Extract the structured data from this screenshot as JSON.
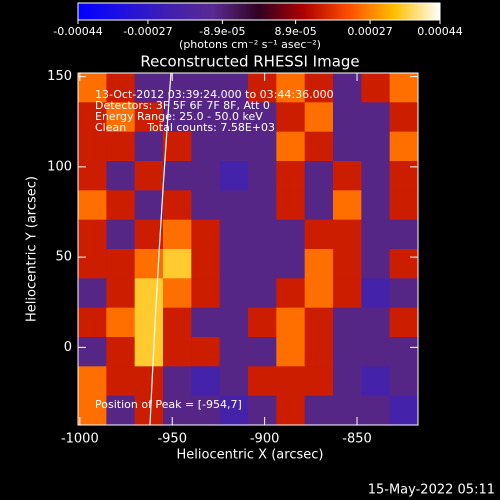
{
  "chart_data": {
    "type": "heatmap",
    "title": "Reconstructed RHESSI Image",
    "xlabel": "Heliocentric X (arcsec)",
    "ylabel": "Heliocentric Y (arcsec)",
    "xlim": [
      -1001,
      -817
    ],
    "xticks": [
      -1000,
      -950,
      -900,
      -850
    ],
    "ylim": [
      -43,
      152
    ],
    "yticks": [
      0,
      50,
      100,
      150
    ],
    "z": [
      [
        0.00025,
        0.00015,
        -0.0001,
        -0.0001,
        -0.0001,
        -0.0001,
        0.00015,
        0.00025,
        0.00015,
        -0.0001,
        0.00015,
        0.00025
      ],
      [
        0.00015,
        0.00025,
        0.00015,
        -0.0001,
        -0.0001,
        -0.0001,
        -0.0001,
        0.00015,
        0.00025,
        -0.0001,
        -0.0001,
        0.00015
      ],
      [
        0.00015,
        0.00015,
        -0.0001,
        0.00015,
        -0.0001,
        -0.0001,
        -0.0001,
        0.00025,
        0.00015,
        -0.0001,
        -0.0001,
        0.00025
      ],
      [
        0.00015,
        -0.0001,
        0.00015,
        -0.0001,
        -0.0001,
        -0.0002,
        -0.0001,
        0.00015,
        -0.0001,
        0.00015,
        -0.0001,
        0.00015
      ],
      [
        0.00025,
        0.00015,
        -0.0001,
        0.00015,
        -0.0001,
        -0.0001,
        -0.0001,
        0.00015,
        -0.0001,
        0.00025,
        -0.0001,
        0.00015
      ],
      [
        0.00015,
        -0.0001,
        0.00015,
        0.00025,
        0.00015,
        -0.0001,
        -0.0001,
        -0.0001,
        0.00015,
        0.00015,
        -0.0001,
        -0.0001
      ],
      [
        0.00015,
        0.00015,
        0.00025,
        0.00035,
        0.00015,
        -0.0001,
        -0.0001,
        -0.0001,
        0.00025,
        0.00015,
        -0.0001,
        0.00015
      ],
      [
        -0.0001,
        0.00015,
        0.00035,
        0.00025,
        0.00015,
        -0.0001,
        -0.0001,
        0.00015,
        0.00025,
        0.00015,
        -0.0002,
        -0.0001
      ],
      [
        0.00015,
        0.00025,
        0.00035,
        0.00015,
        -0.0001,
        -0.0001,
        0.00015,
        0.00025,
        0.00015,
        -0.0001,
        -0.0001,
        0.00015
      ],
      [
        -0.0001,
        0.00015,
        0.00035,
        0.00015,
        0.00015,
        -0.0001,
        -0.0001,
        0.00025,
        0.00015,
        -0.0001,
        -0.0001,
        -0.0001
      ],
      [
        0.00025,
        0.00015,
        0.00015,
        -0.0001,
        -0.0002,
        -0.0001,
        0.00015,
        0.00015,
        0.00015,
        -0.0001,
        -0.0002,
        -0.0001
      ],
      [
        0.00025,
        -0.0001,
        0.00015,
        -0.0001,
        -0.0001,
        -0.0002,
        -0.0001,
        0.00015,
        -0.0001,
        -0.0001,
        -0.0001,
        -0.0002
      ]
    ],
    "colormap": [
      "#0000ff",
      "#2010e0",
      "#4020b0",
      "#5a2a90",
      "#300020",
      "#b00000",
      "#ff5000",
      "#ffc000",
      "#ffffff"
    ],
    "colorbar": {
      "lim": [
        -0.00044,
        0.00044
      ],
      "ticks": [
        -0.00044,
        -0.00027,
        {
          "value": -8.9e-05,
          "label": "-8.9e-05"
        },
        {
          "value": 8.9e-05,
          "label": "8.9e-05"
        },
        0.00027,
        0.00044
      ],
      "label": "(photons cm⁻² s⁻¹ asec⁻²)"
    },
    "annotations": [
      "13-Oct-2012 03:39:24.000 to 03:44:36.000",
      "Detectors: 3F 5F 6F 7F 8F, Att 0",
      "Energy Range: 25.0 - 50.0 keV",
      "Clean      Total counts: 7.58E+03"
    ],
    "peak_label": "Position of Peak = [-954,7]",
    "timestamp": "15-May-2022 05:11"
  }
}
